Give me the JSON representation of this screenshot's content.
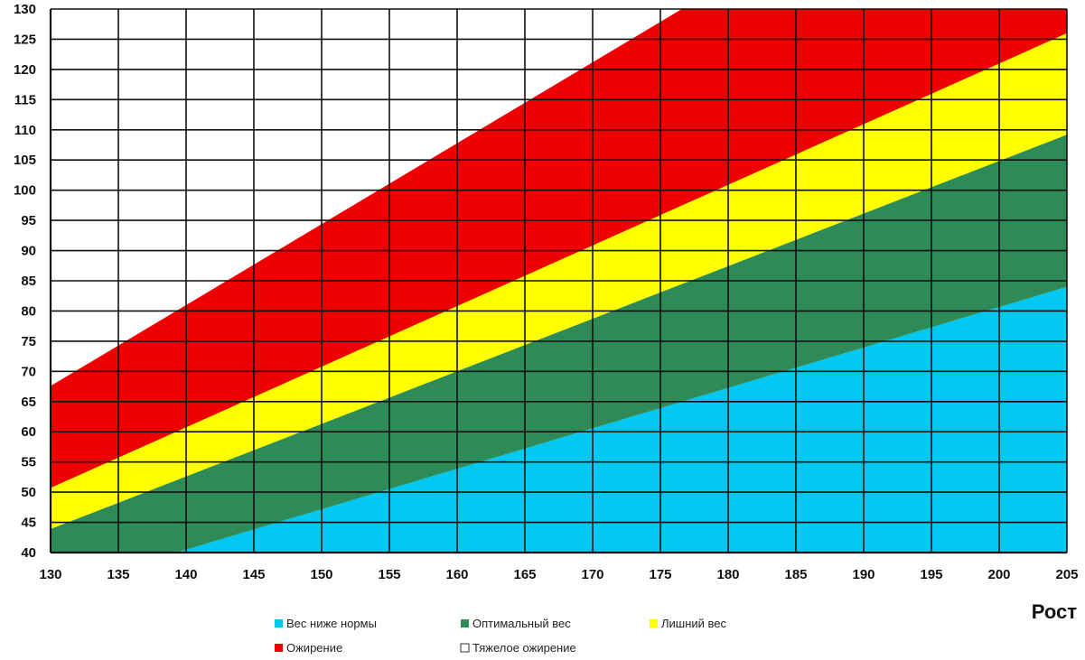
{
  "chart_data": {
    "type": "area",
    "xlabel": "Рост",
    "ylabel": "",
    "xlim": [
      130,
      205
    ],
    "ylim": [
      40,
      130
    ],
    "x_ticks": [
      "130",
      "135",
      "140",
      "145",
      "150",
      "155",
      "160",
      "165",
      "170",
      "175",
      "180",
      "185",
      "190",
      "195",
      "200",
      "205"
    ],
    "y_ticks": [
      "40",
      "45",
      "50",
      "55",
      "60",
      "65",
      "70",
      "75",
      "80",
      "85",
      "90",
      "95",
      "100",
      "105",
      "110",
      "115",
      "120",
      "125",
      "130"
    ],
    "grid": true,
    "legend_position": "bottom",
    "x": [
      130,
      205
    ],
    "boundaries": [
      {
        "lower_name": "Вес ниже нормы",
        "upper_name": "Оптимальный вес",
        "values": [
          33.8,
          84.0
        ]
      },
      {
        "lower_name": "Оптимальный вес",
        "upper_name": "Лишний вес",
        "values": [
          43.9,
          109.2
        ]
      },
      {
        "lower_name": "Лишний вес",
        "upper_name": "Ожирение",
        "values": [
          50.7,
          126.0
        ]
      },
      {
        "lower_name": "Ожирение",
        "upper_name": "Тяжелое ожирение",
        "values": [
          67.6,
          168.1
        ]
      }
    ],
    "series": [
      {
        "name": "Вес ниже нормы",
        "color": "#00c8f0"
      },
      {
        "name": "Оптимальный вес",
        "color": "#2e8b57"
      },
      {
        "name": "Лишний вес",
        "color": "#ffff00"
      },
      {
        "name": "Ожирение",
        "color": "#ee0000"
      },
      {
        "name": "Тяжелое ожирение",
        "color": "#ffffff"
      }
    ]
  },
  "legend": {
    "row1": [
      {
        "label": "Вес ниже нормы",
        "color": "#00c8f0"
      },
      {
        "label": "Оптимальный вес",
        "color": "#2e8b57"
      },
      {
        "label": "Лишний вес",
        "color": "#ffff00"
      }
    ],
    "row2": [
      {
        "label": "Ожирение",
        "color": "#ee0000"
      },
      {
        "label": "Тяжелое ожирение",
        "color": "#ffffff"
      }
    ]
  }
}
